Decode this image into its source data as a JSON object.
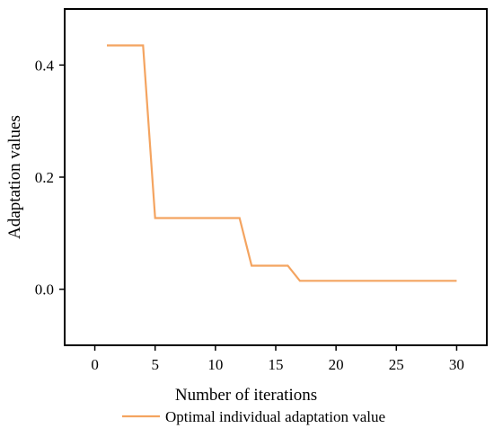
{
  "chart_data": {
    "type": "line",
    "title": "",
    "xlabel": "Number of iterations",
    "ylabel": "Adaptation values",
    "xlim": [
      -2.5,
      32.5
    ],
    "ylim": [
      -0.1,
      0.5
    ],
    "x_ticks": [
      0,
      5,
      10,
      15,
      20,
      25,
      30
    ],
    "x_tick_labels": [
      "0",
      "5",
      "10",
      "15",
      "20",
      "25",
      "30"
    ],
    "y_ticks": [
      0.0,
      0.2,
      0.4
    ],
    "y_tick_labels": [
      "0.0",
      "0.2",
      "0.4"
    ],
    "grid": false,
    "legend_position": "bottom",
    "series": [
      {
        "name": "Optimal individual adaptation value",
        "color": "#f4a460",
        "points": [
          {
            "x": 1,
            "y": 0.435
          },
          {
            "x": 4,
            "y": 0.435
          },
          {
            "x": 5,
            "y": 0.127
          },
          {
            "x": 12,
            "y": 0.127
          },
          {
            "x": 13,
            "y": 0.042
          },
          {
            "x": 16,
            "y": 0.042
          },
          {
            "x": 17,
            "y": 0.015
          },
          {
            "x": 30,
            "y": 0.015
          }
        ]
      }
    ]
  }
}
